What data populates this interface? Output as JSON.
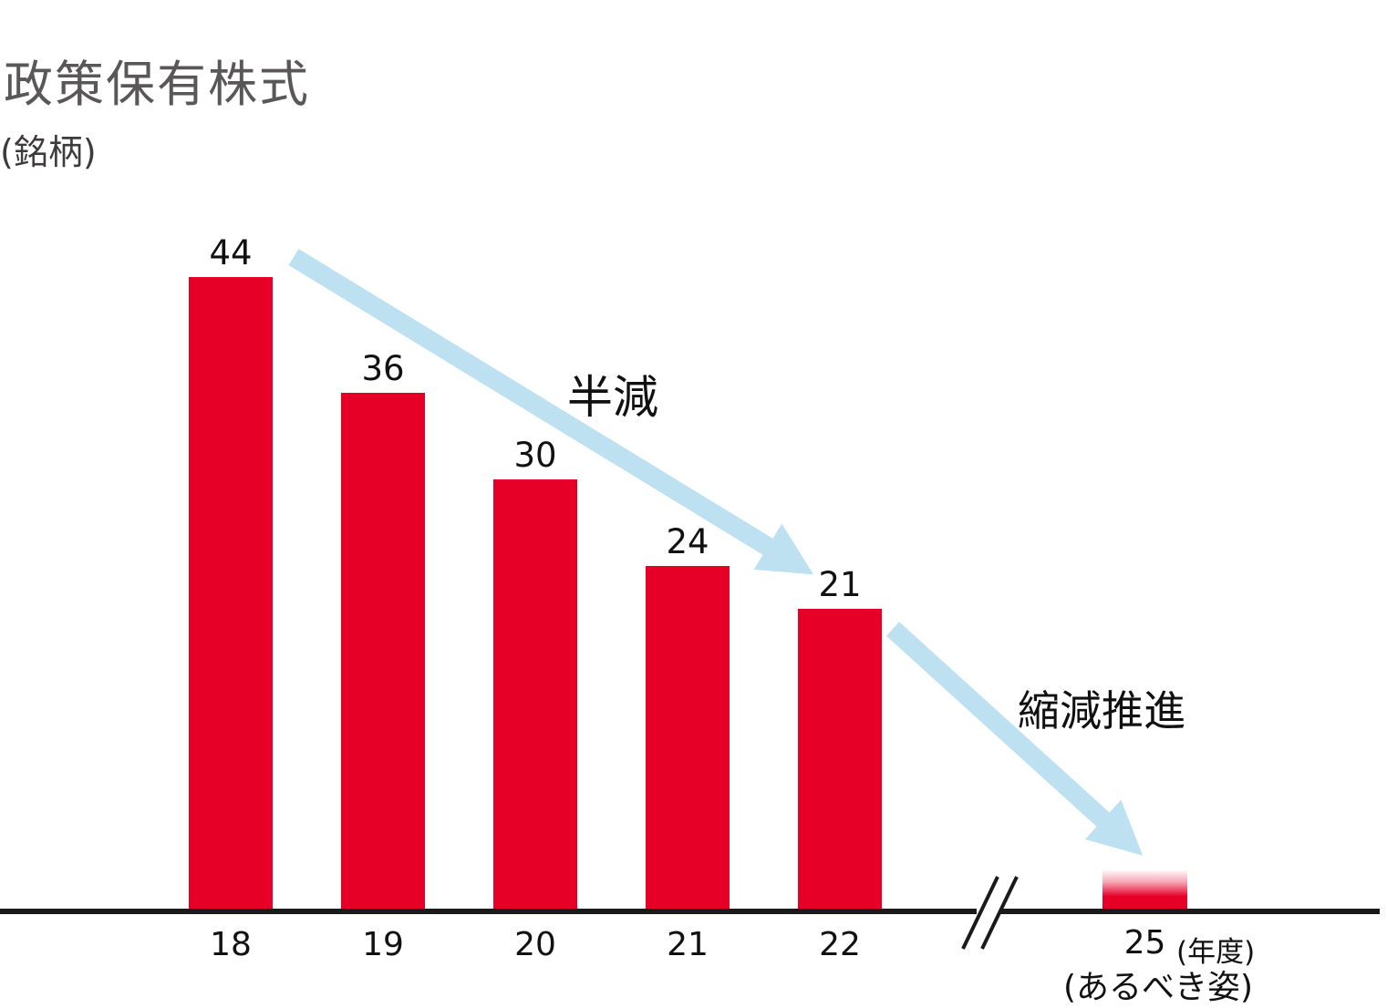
{
  "chart_data": {
    "type": "bar",
    "title": "政策保有株式",
    "ylabel": "(銘柄)",
    "categories": [
      "18",
      "19",
      "20",
      "21",
      "22"
    ],
    "values": [
      44,
      36,
      30,
      24,
      21
    ],
    "xlabel_unit": "(年度)",
    "target": {
      "category": "25",
      "caption": "(あるべき姿)",
      "value_label": null
    },
    "annotations": [
      {
        "text": "半減"
      },
      {
        "text": "縮減推進"
      }
    ],
    "axis_break": true,
    "grid": false,
    "legend": false,
    "ylim": [
      0,
      44
    ],
    "colors": {
      "bar": "#e60028",
      "arrow": "#bee1f1",
      "axis": "#1a1a1a",
      "title": "#595757",
      "text": "#111111"
    }
  }
}
